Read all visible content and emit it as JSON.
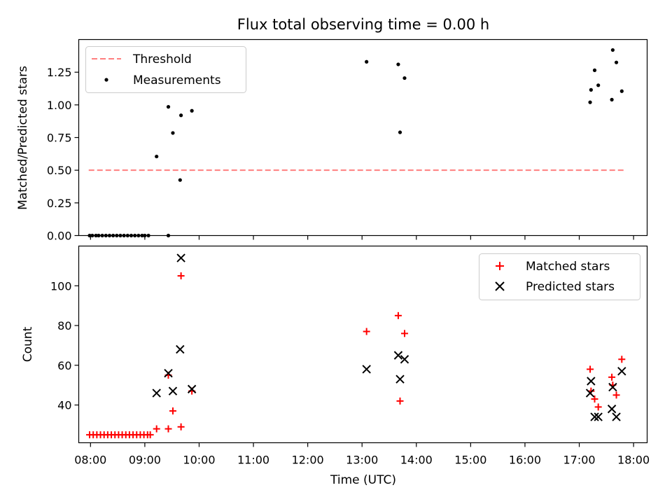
{
  "chart_data": [
    {
      "type": "scatter",
      "title": "Flux total observing time = 0.00 h",
      "ylabel": "Matched/Predicted stars",
      "xlabel": "",
      "xlim": [
        "07:47",
        "18:15"
      ],
      "ylim": [
        0,
        1.5
      ],
      "yticks": [
        0.0,
        0.25,
        0.5,
        0.75,
        1.0,
        1.25
      ],
      "ytick_labels": [
        "0.00",
        "0.25",
        "0.50",
        "0.75",
        "1.00",
        "1.25"
      ],
      "legend_position": "top-left",
      "legend": {
        "threshold": "Threshold",
        "measurements": "Measurements"
      },
      "threshold": {
        "name": "Threshold",
        "color": "#ff7f7f",
        "y": 0.5,
        "x_start": "07:58",
        "x_end": "17:49"
      },
      "series": [
        {
          "name": "Measurements",
          "color": "#000000",
          "points": [
            [
              "07:59",
              0
            ],
            [
              "08:02",
              0
            ],
            [
              "08:06",
              0
            ],
            [
              "08:09",
              0
            ],
            [
              "08:13",
              0
            ],
            [
              "08:17",
              0
            ],
            [
              "08:21",
              0
            ],
            [
              "08:25",
              0
            ],
            [
              "08:29",
              0
            ],
            [
              "08:33",
              0
            ],
            [
              "08:37",
              0
            ],
            [
              "08:41",
              0
            ],
            [
              "08:45",
              0
            ],
            [
              "08:49",
              0
            ],
            [
              "08:53",
              0
            ],
            [
              "08:57",
              0
            ],
            [
              "09:00",
              0
            ],
            [
              "09:04",
              0
            ],
            [
              "09:26",
              0
            ],
            [
              "09:13",
              0.605
            ],
            [
              "09:26",
              0.985
            ],
            [
              "09:31",
              0.785
            ],
            [
              "09:39",
              0.425
            ],
            [
              "09:40",
              0.92
            ],
            [
              "09:52",
              0.955
            ],
            [
              "13:05",
              1.33
            ],
            [
              "13:40",
              1.31
            ],
            [
              "13:42",
              0.79
            ],
            [
              "13:47",
              1.205
            ],
            [
              "17:12",
              1.02
            ],
            [
              "17:13",
              1.115
            ],
            [
              "17:17",
              1.265
            ],
            [
              "17:21",
              1.15
            ],
            [
              "17:36",
              1.04
            ],
            [
              "17:37",
              1.42
            ],
            [
              "17:41",
              1.325
            ],
            [
              "17:47",
              1.105
            ]
          ]
        }
      ]
    },
    {
      "type": "scatter",
      "title": "",
      "ylabel": "Count",
      "xlabel": "Time (UTC)",
      "xlim": [
        "07:47",
        "18:15"
      ],
      "ylim": [
        21,
        120
      ],
      "yticks": [
        40,
        60,
        80,
        100
      ],
      "ytick_labels": [
        "40",
        "60",
        "80",
        "100"
      ],
      "xticks": [
        "08:00",
        "09:00",
        "10:00",
        "11:00",
        "12:00",
        "13:00",
        "14:00",
        "15:00",
        "16:00",
        "17:00",
        "18:00"
      ],
      "xtick_labels": [
        "08:00",
        "09:00",
        "10:00",
        "11:00",
        "12:00",
        "13:00",
        "14:00",
        "15:00",
        "16:00",
        "17:00",
        "18:00"
      ],
      "legend_position": "top-right",
      "series": [
        {
          "name": "Matched stars",
          "color": "#ff0000",
          "marker": "plus",
          "points": [
            [
              "07:59",
              25
            ],
            [
              "08:03",
              25
            ],
            [
              "08:07",
              25
            ],
            [
              "08:11",
              25
            ],
            [
              "08:15",
              25
            ],
            [
              "08:19",
              25
            ],
            [
              "08:23",
              25
            ],
            [
              "08:27",
              25
            ],
            [
              "08:31",
              25
            ],
            [
              "08:35",
              25
            ],
            [
              "08:39",
              25
            ],
            [
              "08:43",
              25
            ],
            [
              "08:47",
              25
            ],
            [
              "08:51",
              25
            ],
            [
              "08:55",
              25
            ],
            [
              "08:59",
              25
            ],
            [
              "09:03",
              25
            ],
            [
              "09:06",
              25
            ],
            [
              "09:13",
              28
            ],
            [
              "09:26",
              28
            ],
            [
              "09:26",
              55
            ],
            [
              "09:31",
              37
            ],
            [
              "09:40",
              29
            ],
            [
              "09:40",
              105
            ],
            [
              "09:52",
              47
            ],
            [
              "13:05",
              77
            ],
            [
              "13:40",
              85
            ],
            [
              "13:42",
              42
            ],
            [
              "13:47",
              76
            ],
            [
              "17:12",
              58
            ],
            [
              "17:13",
              47
            ],
            [
              "17:17",
              43
            ],
            [
              "17:21",
              39
            ],
            [
              "17:36",
              54
            ],
            [
              "17:37",
              50
            ],
            [
              "17:41",
              45
            ],
            [
              "17:47",
              63
            ]
          ]
        },
        {
          "name": "Predicted stars",
          "color": "#000000",
          "marker": "x",
          "points": [
            [
              "09:13",
              46
            ],
            [
              "09:26",
              56
            ],
            [
              "09:31",
              47
            ],
            [
              "09:39",
              68
            ],
            [
              "09:40",
              114
            ],
            [
              "09:52",
              48
            ],
            [
              "13:05",
              58
            ],
            [
              "13:40",
              65
            ],
            [
              "13:42",
              53
            ],
            [
              "13:47",
              63
            ],
            [
              "17:12",
              46
            ],
            [
              "17:13",
              52
            ],
            [
              "17:17",
              34
            ],
            [
              "17:21",
              34
            ],
            [
              "17:36",
              38
            ],
            [
              "17:37",
              49
            ],
            [
              "17:41",
              34
            ],
            [
              "17:47",
              57
            ]
          ]
        }
      ]
    }
  ]
}
